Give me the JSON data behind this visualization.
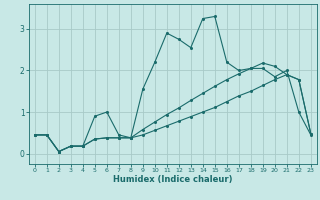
{
  "xlabel": "Humidex (Indice chaleur)",
  "bg_color": "#c8e8e6",
  "line_color": "#1a6b6b",
  "grid_color": "#a8cac8",
  "xlim": [
    -0.5,
    23.5
  ],
  "ylim": [
    -0.25,
    3.6
  ],
  "xticks": [
    0,
    1,
    2,
    3,
    4,
    5,
    6,
    7,
    8,
    9,
    10,
    11,
    12,
    13,
    14,
    15,
    16,
    17,
    18,
    19,
    20,
    21,
    22,
    23
  ],
  "yticks": [
    0,
    1,
    2,
    3
  ],
  "line1_x": [
    0,
    1,
    2,
    3,
    4,
    5,
    6,
    7,
    8,
    9,
    10,
    11,
    12,
    13,
    14,
    15,
    16,
    17,
    18,
    19,
    20,
    21,
    22,
    23
  ],
  "line1_y": [
    0.45,
    0.45,
    0.05,
    0.18,
    0.18,
    0.9,
    1.0,
    0.45,
    0.38,
    1.55,
    2.2,
    2.9,
    2.75,
    2.55,
    3.25,
    3.3,
    2.2,
    2.0,
    2.05,
    2.05,
    1.85,
    2.0,
    1.0,
    0.45
  ],
  "line2_x": [
    0,
    1,
    2,
    3,
    4,
    5,
    6,
    7,
    8,
    9,
    10,
    11,
    12,
    13,
    14,
    15,
    16,
    17,
    18,
    19,
    20,
    21,
    22,
    23
  ],
  "line2_y": [
    0.45,
    0.45,
    0.05,
    0.18,
    0.18,
    0.35,
    0.38,
    0.38,
    0.38,
    0.45,
    0.56,
    0.67,
    0.78,
    0.89,
    1.0,
    1.11,
    1.25,
    1.39,
    1.5,
    1.64,
    1.78,
    1.9,
    1.78,
    0.48
  ],
  "line3_x": [
    0,
    1,
    2,
    3,
    4,
    5,
    6,
    7,
    8,
    9,
    10,
    11,
    12,
    13,
    14,
    15,
    16,
    17,
    18,
    19,
    20,
    21,
    22,
    23
  ],
  "line3_y": [
    0.45,
    0.45,
    0.05,
    0.18,
    0.18,
    0.35,
    0.38,
    0.38,
    0.38,
    0.58,
    0.76,
    0.94,
    1.1,
    1.28,
    1.45,
    1.62,
    1.78,
    1.92,
    2.05,
    2.18,
    2.1,
    1.9,
    1.78,
    0.48
  ]
}
